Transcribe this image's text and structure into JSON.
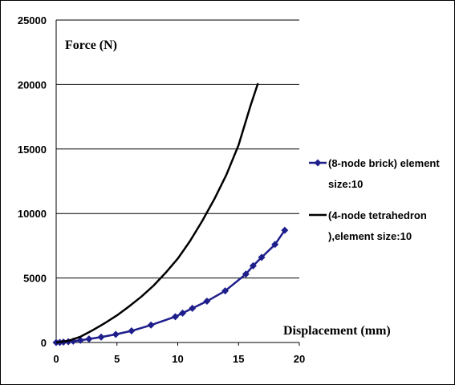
{
  "chart_data": {
    "type": "line",
    "ylabel": "Force (N)",
    "xlabel": "Displacement (mm)",
    "xlim": [
      0,
      20
    ],
    "ylim": [
      0,
      25000
    ],
    "x_ticks": [
      0,
      5,
      10,
      15,
      20
    ],
    "y_ticks": [
      0,
      5000,
      10000,
      15000,
      20000,
      25000
    ],
    "grid": "horizontal",
    "legend_position": "right",
    "series": [
      {
        "name_lines": [
          "(8-node brick) element",
          "size:10"
        ],
        "color": "#1f1f8c",
        "marker": "diamond",
        "x": [
          0,
          0.3,
          0.6,
          1,
          1.4,
          2,
          2.7,
          3.7,
          4.9,
          6.2,
          7.8,
          9.8,
          10.4,
          11.2,
          12.4,
          13.9,
          15.6,
          16.2,
          16.9,
          18,
          18.8
        ],
        "y": [
          0,
          10,
          30,
          60,
          100,
          170,
          270,
          420,
          630,
          900,
          1350,
          2000,
          2280,
          2650,
          3200,
          4000,
          5300,
          5950,
          6600,
          7600,
          8700
        ]
      },
      {
        "name_lines": [
          "(4-node tetrahedron",
          "),element size:10"
        ],
        "color": "#000000",
        "marker": "none",
        "x": [
          0,
          1,
          2,
          3,
          4,
          5,
          6,
          7,
          8,
          9,
          10,
          11,
          12,
          13,
          14,
          15,
          16,
          16.6
        ],
        "y": [
          0,
          130,
          450,
          950,
          1500,
          2100,
          2800,
          3550,
          4400,
          5400,
          6500,
          7850,
          9400,
          11100,
          13000,
          15300,
          18400,
          20100
        ]
      }
    ]
  }
}
